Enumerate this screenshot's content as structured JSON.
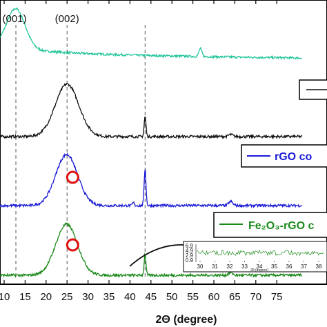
{
  "chart_data": {
    "type": "line",
    "title": "",
    "xlabel": "2Θ (degree)",
    "ylabel": "",
    "xlim": [
      10,
      80
    ],
    "x_ticks": [
      "10",
      "15",
      "20",
      "25",
      "30",
      "35",
      "40",
      "45",
      "50",
      "55",
      "60",
      "65",
      "70",
      "75"
    ],
    "peak_labels": [
      {
        "text": "(001)",
        "x": 12.8
      },
      {
        "text": "(002)",
        "x": 25.0
      }
    ],
    "reference_lines_x": [
      12.8,
      25.0,
      43.6
    ],
    "series": [
      {
        "color": "#22c59a",
        "legend": "",
        "stack_level": 4,
        "peaks": [
          {
            "x": 12.8,
            "height": 0.9,
            "width": 2.2
          },
          {
            "x": 56.8,
            "height": 0.18,
            "width": 0.35
          }
        ],
        "baseline_slope": -0.45
      },
      {
        "color": "#111111",
        "legend": "",
        "stack_level": 3,
        "peaks": [
          {
            "x": 25.0,
            "height": 1.0,
            "width": 2.8
          },
          {
            "x": 43.6,
            "height": 0.38,
            "width": 0.22
          },
          {
            "x": 64.0,
            "height": 0.04,
            "width": 0.5
          }
        ],
        "baseline_slope": 0
      },
      {
        "color": "#1a1ad6",
        "legend": "rGO co",
        "stack_level": 2,
        "peaks": [
          {
            "x": 24.9,
            "height": 1.0,
            "width": 2.6
          },
          {
            "x": 43.6,
            "height": 0.72,
            "width": 0.22
          },
          {
            "x": 40.8,
            "height": 0.06,
            "width": 0.2
          },
          {
            "x": 64.0,
            "height": 0.08,
            "width": 0.5
          }
        ],
        "baseline_slope": 0
      },
      {
        "color": "#1a8a1a",
        "legend": "Fe₂O₃-rGO c",
        "stack_level": 1,
        "peaks": [
          {
            "x": 24.9,
            "height": 1.0,
            "width": 2.6
          },
          {
            "x": 43.6,
            "height": 0.42,
            "width": 0.22
          },
          {
            "x": 64.0,
            "height": 0.05,
            "width": 0.5
          }
        ],
        "baseline_slope": 0
      }
    ],
    "highlight_circles_x": [
      27.0,
      27.0
    ],
    "inset": {
      "x_ticks": [
        "30",
        "31",
        "32",
        "33",
        "34",
        "35",
        "36",
        "37",
        "38"
      ],
      "y_ticks": [
        "6.9",
        "4.9",
        "2.9",
        "0.9"
      ],
      "xlabel": "2θ (degree)"
    }
  }
}
